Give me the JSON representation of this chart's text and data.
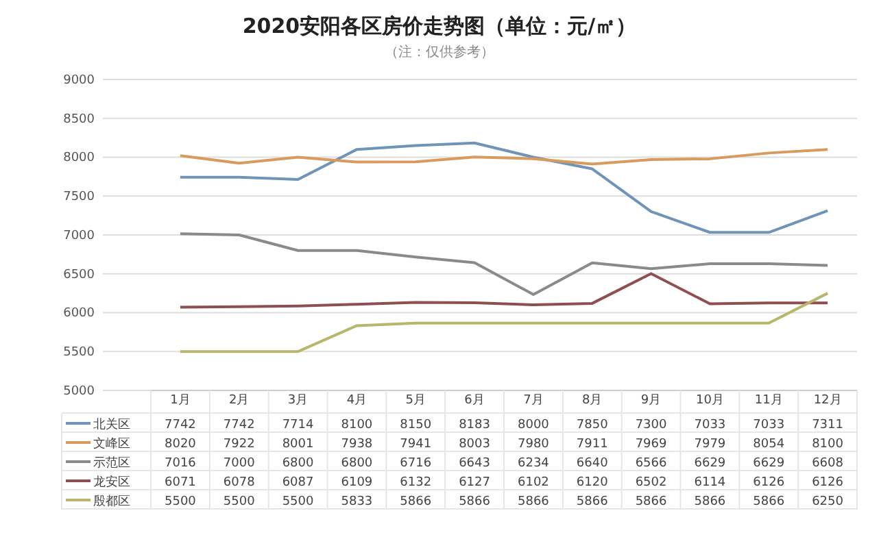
{
  "chart_data": {
    "type": "line",
    "title": "2020安阳各区房价走势图（单位：元/㎡）",
    "subtitle": "（注：仅供参考）",
    "categories": [
      "1月",
      "2月",
      "3月",
      "4月",
      "5月",
      "6月",
      "7月",
      "8月",
      "9月",
      "10月",
      "11月",
      "12月"
    ],
    "series": [
      {
        "name": "北关区",
        "color": "#7094b8",
        "values": [
          7742,
          7742,
          7714,
          8100,
          8150,
          8183,
          8000,
          7850,
          7300,
          7033,
          7033,
          7311
        ]
      },
      {
        "name": "文峰区",
        "color": "#d99a5e",
        "values": [
          8020,
          7922,
          8001,
          7938,
          7941,
          8003,
          7980,
          7911,
          7969,
          7979,
          8054,
          8100
        ]
      },
      {
        "name": "示范区",
        "color": "#8a8a8a",
        "values": [
          7016,
          7000,
          6800,
          6800,
          6716,
          6643,
          6234,
          6640,
          6566,
          6629,
          6629,
          6608
        ]
      },
      {
        "name": "龙安区",
        "color": "#8e4f52",
        "values": [
          6071,
          6078,
          6087,
          6109,
          6132,
          6127,
          6102,
          6120,
          6502,
          6114,
          6126,
          6126
        ]
      },
      {
        "name": "殷都区",
        "color": "#b9b66c",
        "values": [
          5500,
          5500,
          5500,
          5833,
          5866,
          5866,
          5866,
          5866,
          5866,
          5866,
          5866,
          6250
        ]
      }
    ],
    "ylim": [
      5000,
      9000
    ],
    "yticks": [
      5000,
      5500,
      6000,
      6500,
      7000,
      7500,
      8000,
      8500,
      9000
    ],
    "grid": "y",
    "legend": "bottom",
    "data_labels": true,
    "marker": "none",
    "line_style": "solid"
  }
}
